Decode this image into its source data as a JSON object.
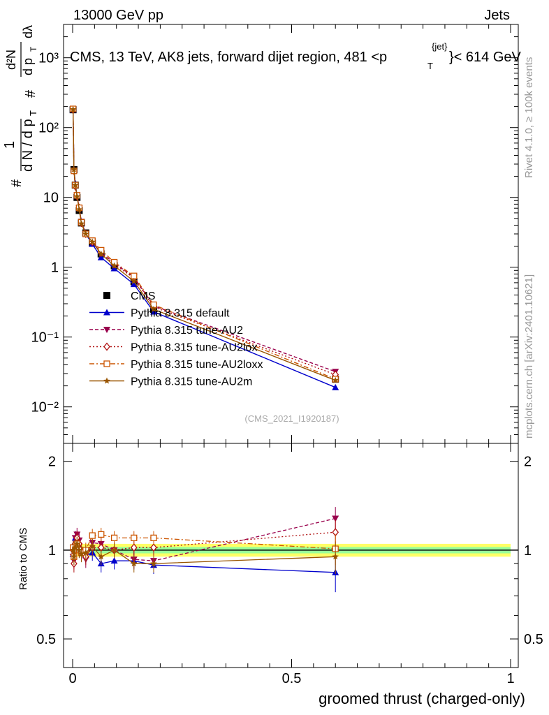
{
  "header": {
    "left": "13000 GeV pp",
    "right": "Jets",
    "plot_title": "CMS, 13 TeV, AK8 jets, forward dijet region, 481 <p",
    "plot_title_sub": "T",
    "plot_title_sup": "{jet}",
    "plot_title_end": "}< 614 GeV",
    "analysis_id": "(CMS_2021_I1920187)"
  },
  "side_labels": {
    "rivet": "Rivet 4.1.0, ≥ 100k events",
    "mcplots": "mcplots.cern.ch [arXiv:2401.10621]"
  },
  "axes": {
    "y_label_top": {
      "hash1": "#",
      "one": "1",
      "dN": "d N / d p",
      "dN_sub": "T",
      "hash2": "#",
      "d2N": "d²N",
      "dpT": "d p",
      "dpT_sub": "T",
      "dlambda": "dλ"
    },
    "y_label_bottom": "Ratio to CMS",
    "x_label": "groomed thrust (charged-only)",
    "x_ticks": [
      "0",
      "0.5",
      "1"
    ],
    "top_y_ticks": [
      "10⁻²",
      "10⁻¹",
      "1",
      "10",
      "10²",
      "10³"
    ],
    "ratio_y_ticks": [
      "0.5",
      "1",
      "2"
    ]
  },
  "chart_data": {
    "type": "line",
    "title": "CMS, 13 TeV, AK8 jets, forward dijet region, 481 < pT{jet} < 614 GeV",
    "xlabel": "groomed thrust (charged-only)",
    "xlim": [
      0,
      1
    ],
    "ylim_top": [
      0.003,
      3000
    ],
    "ylim_ratio": [
      0.4,
      2.3
    ],
    "y_scale": "log",
    "x": [
      0.001,
      0.003,
      0.006,
      0.01,
      0.015,
      0.02,
      0.03,
      0.045,
      0.065,
      0.095,
      0.14,
      0.185,
      0.6
    ],
    "series": [
      {
        "name": "CMS",
        "color": "#000000",
        "marker": "square-filled",
        "dash": "none",
        "values": [
          180,
          25,
          15,
          10,
          6.5,
          4.3,
          3.1,
          2.2,
          1.55,
          1.05,
          0.62,
          0.25,
          0.025
        ],
        "ratio": [
          1.0,
          1.0,
          1.0,
          1.0,
          1.0,
          1.0,
          1.0,
          1.0,
          1.0,
          1.0,
          1.0,
          1.0,
          1.0
        ]
      },
      {
        "name": "Pythia 8.315 default",
        "color": "#0000cc",
        "marker": "triangle-up",
        "dash": "none",
        "values": [
          180,
          25,
          16,
          10.5,
          7.0,
          4.5,
          3.0,
          2.15,
          1.38,
          0.96,
          0.57,
          0.23,
          0.019
        ],
        "ratio": [
          0.97,
          1.05,
          1.1,
          1.08,
          1.04,
          1.0,
          0.96,
          0.98,
          0.9,
          0.92,
          0.92,
          0.89,
          0.84
        ]
      },
      {
        "name": "Pythia 8.315 tune-AU2",
        "color": "#99004c",
        "marker": "triangle-down",
        "dash": "5,3",
        "values": [
          178,
          24,
          14,
          10.8,
          7.0,
          4.5,
          3.0,
          2.35,
          1.6,
          1.15,
          0.72,
          0.28,
          0.032
        ],
        "ratio": [
          0.95,
          0.92,
          1.1,
          1.13,
          1.08,
          0.98,
          0.93,
          1.06,
          1.05,
          1.0,
          0.93,
          0.92,
          1.28
        ]
      },
      {
        "name": "Pythia 8.315 tune-AU2lox",
        "color": "#b01010",
        "marker": "diamond-open",
        "dash": "2,3",
        "values": [
          180,
          24,
          14.5,
          10.4,
          7.1,
          4.3,
          3.0,
          2.3,
          1.6,
          1.1,
          0.7,
          0.27,
          0.029
        ],
        "ratio": [
          1.0,
          0.9,
          1.05,
          1.1,
          1.05,
          1.0,
          0.95,
          1.02,
          1.02,
          1.0,
          1.02,
          1.02,
          1.15
        ]
      },
      {
        "name": "Pythia 8.315 tune-AU2loxx",
        "color": "#cc5500",
        "marker": "square-open",
        "dash": "7,3,2,3",
        "values": [
          185,
          24,
          15,
          10.7,
          7.1,
          4.4,
          3.0,
          2.4,
          1.75,
          1.18,
          0.75,
          0.29,
          0.025
        ],
        "ratio": [
          1.02,
          0.95,
          1.0,
          1.05,
          1.0,
          0.98,
          1.0,
          1.12,
          1.13,
          1.1,
          1.1,
          1.1,
          1.01
        ]
      },
      {
        "name": "Pythia 8.315 tune-AU2m",
        "color": "#995500",
        "marker": "star",
        "dash": "none",
        "values": [
          182,
          25,
          15,
          10.3,
          6.7,
          4.2,
          3.0,
          2.3,
          1.55,
          1.05,
          0.63,
          0.25,
          0.024
        ],
        "ratio": [
          1.0,
          0.95,
          1.02,
          1.05,
          1.0,
          0.97,
          0.98,
          1.03,
          0.95,
          1.0,
          0.9,
          0.9,
          0.95
        ]
      }
    ]
  }
}
